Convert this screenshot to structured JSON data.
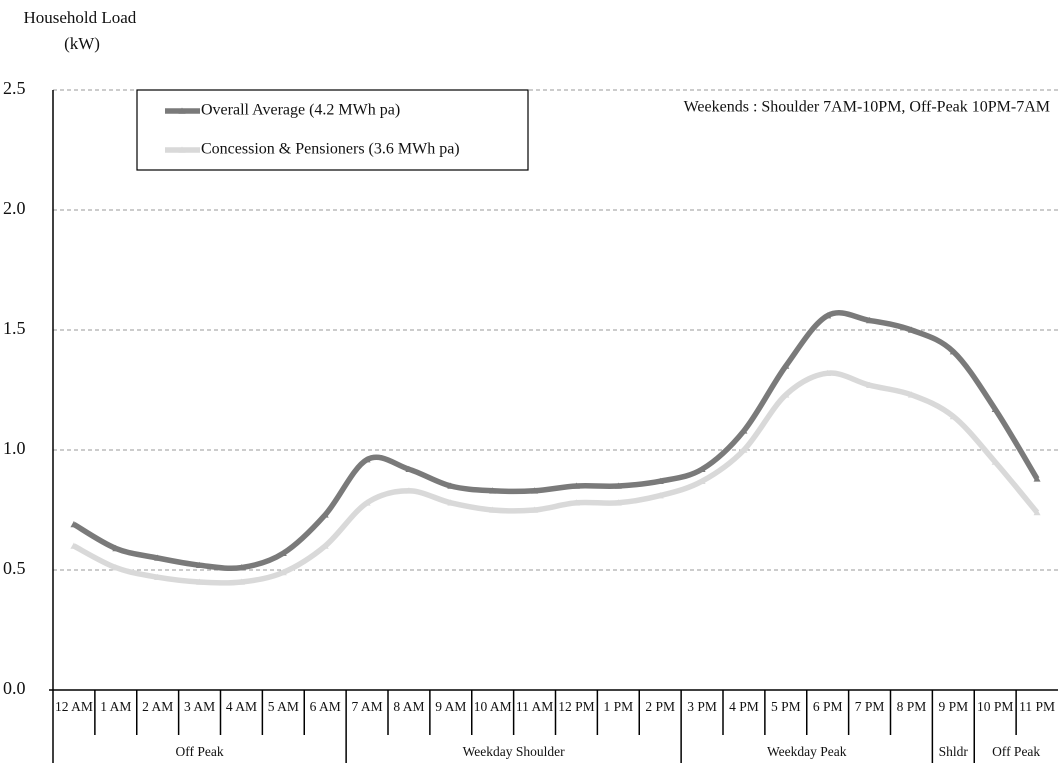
{
  "chart_data": {
    "type": "line",
    "y_label": "Household Load (kW)",
    "annotation": "Weekends : Shoulder 7AM-10PM, Off-Peak 10PM-7AM",
    "categories": [
      "12 AM",
      "1 AM",
      "2 AM",
      "3 AM",
      "4 AM",
      "5 AM",
      "6 AM",
      "7 AM",
      "8 AM",
      "9 AM",
      "10 AM",
      "11 AM",
      "12 PM",
      "1 PM",
      "2 PM",
      "3 PM",
      "4 PM",
      "5 PM",
      "6 PM",
      "7 PM",
      "8 PM",
      "9 PM",
      "10 PM",
      "11 PM"
    ],
    "periods": [
      "Off Peak",
      "Weekday Shoulder",
      "Weekday Peak",
      "Shldr",
      "Off Peak"
    ],
    "series": [
      {
        "name": "Overall Average (4.2 MWh pa)",
        "color": "#7a7a7a",
        "values": [
          0.69,
          0.59,
          0.55,
          0.52,
          0.51,
          0.57,
          0.73,
          0.96,
          0.92,
          0.85,
          0.83,
          0.83,
          0.85,
          0.85,
          0.87,
          0.92,
          1.08,
          1.35,
          1.56,
          1.54,
          1.5,
          1.41,
          1.17,
          0.88
        ]
      },
      {
        "name": "Concession & Pensioners (3.6 MWh pa)",
        "color": "#d9d9d9",
        "values": [
          0.6,
          0.51,
          0.47,
          0.45,
          0.45,
          0.49,
          0.6,
          0.78,
          0.83,
          0.78,
          0.75,
          0.75,
          0.78,
          0.78,
          0.81,
          0.87,
          1.0,
          1.23,
          1.32,
          1.27,
          1.23,
          1.14,
          0.95,
          0.74
        ]
      }
    ],
    "ylim": [
      0,
      2.5
    ],
    "yticks": [
      {
        "value": 0,
        "label": "0.0"
      },
      0.5,
      {
        "value": 1,
        "label": "1.0"
      },
      1.5,
      {
        "value": 2,
        "label": "2.0"
      },
      2.5
    ],
    "grid": true
  }
}
